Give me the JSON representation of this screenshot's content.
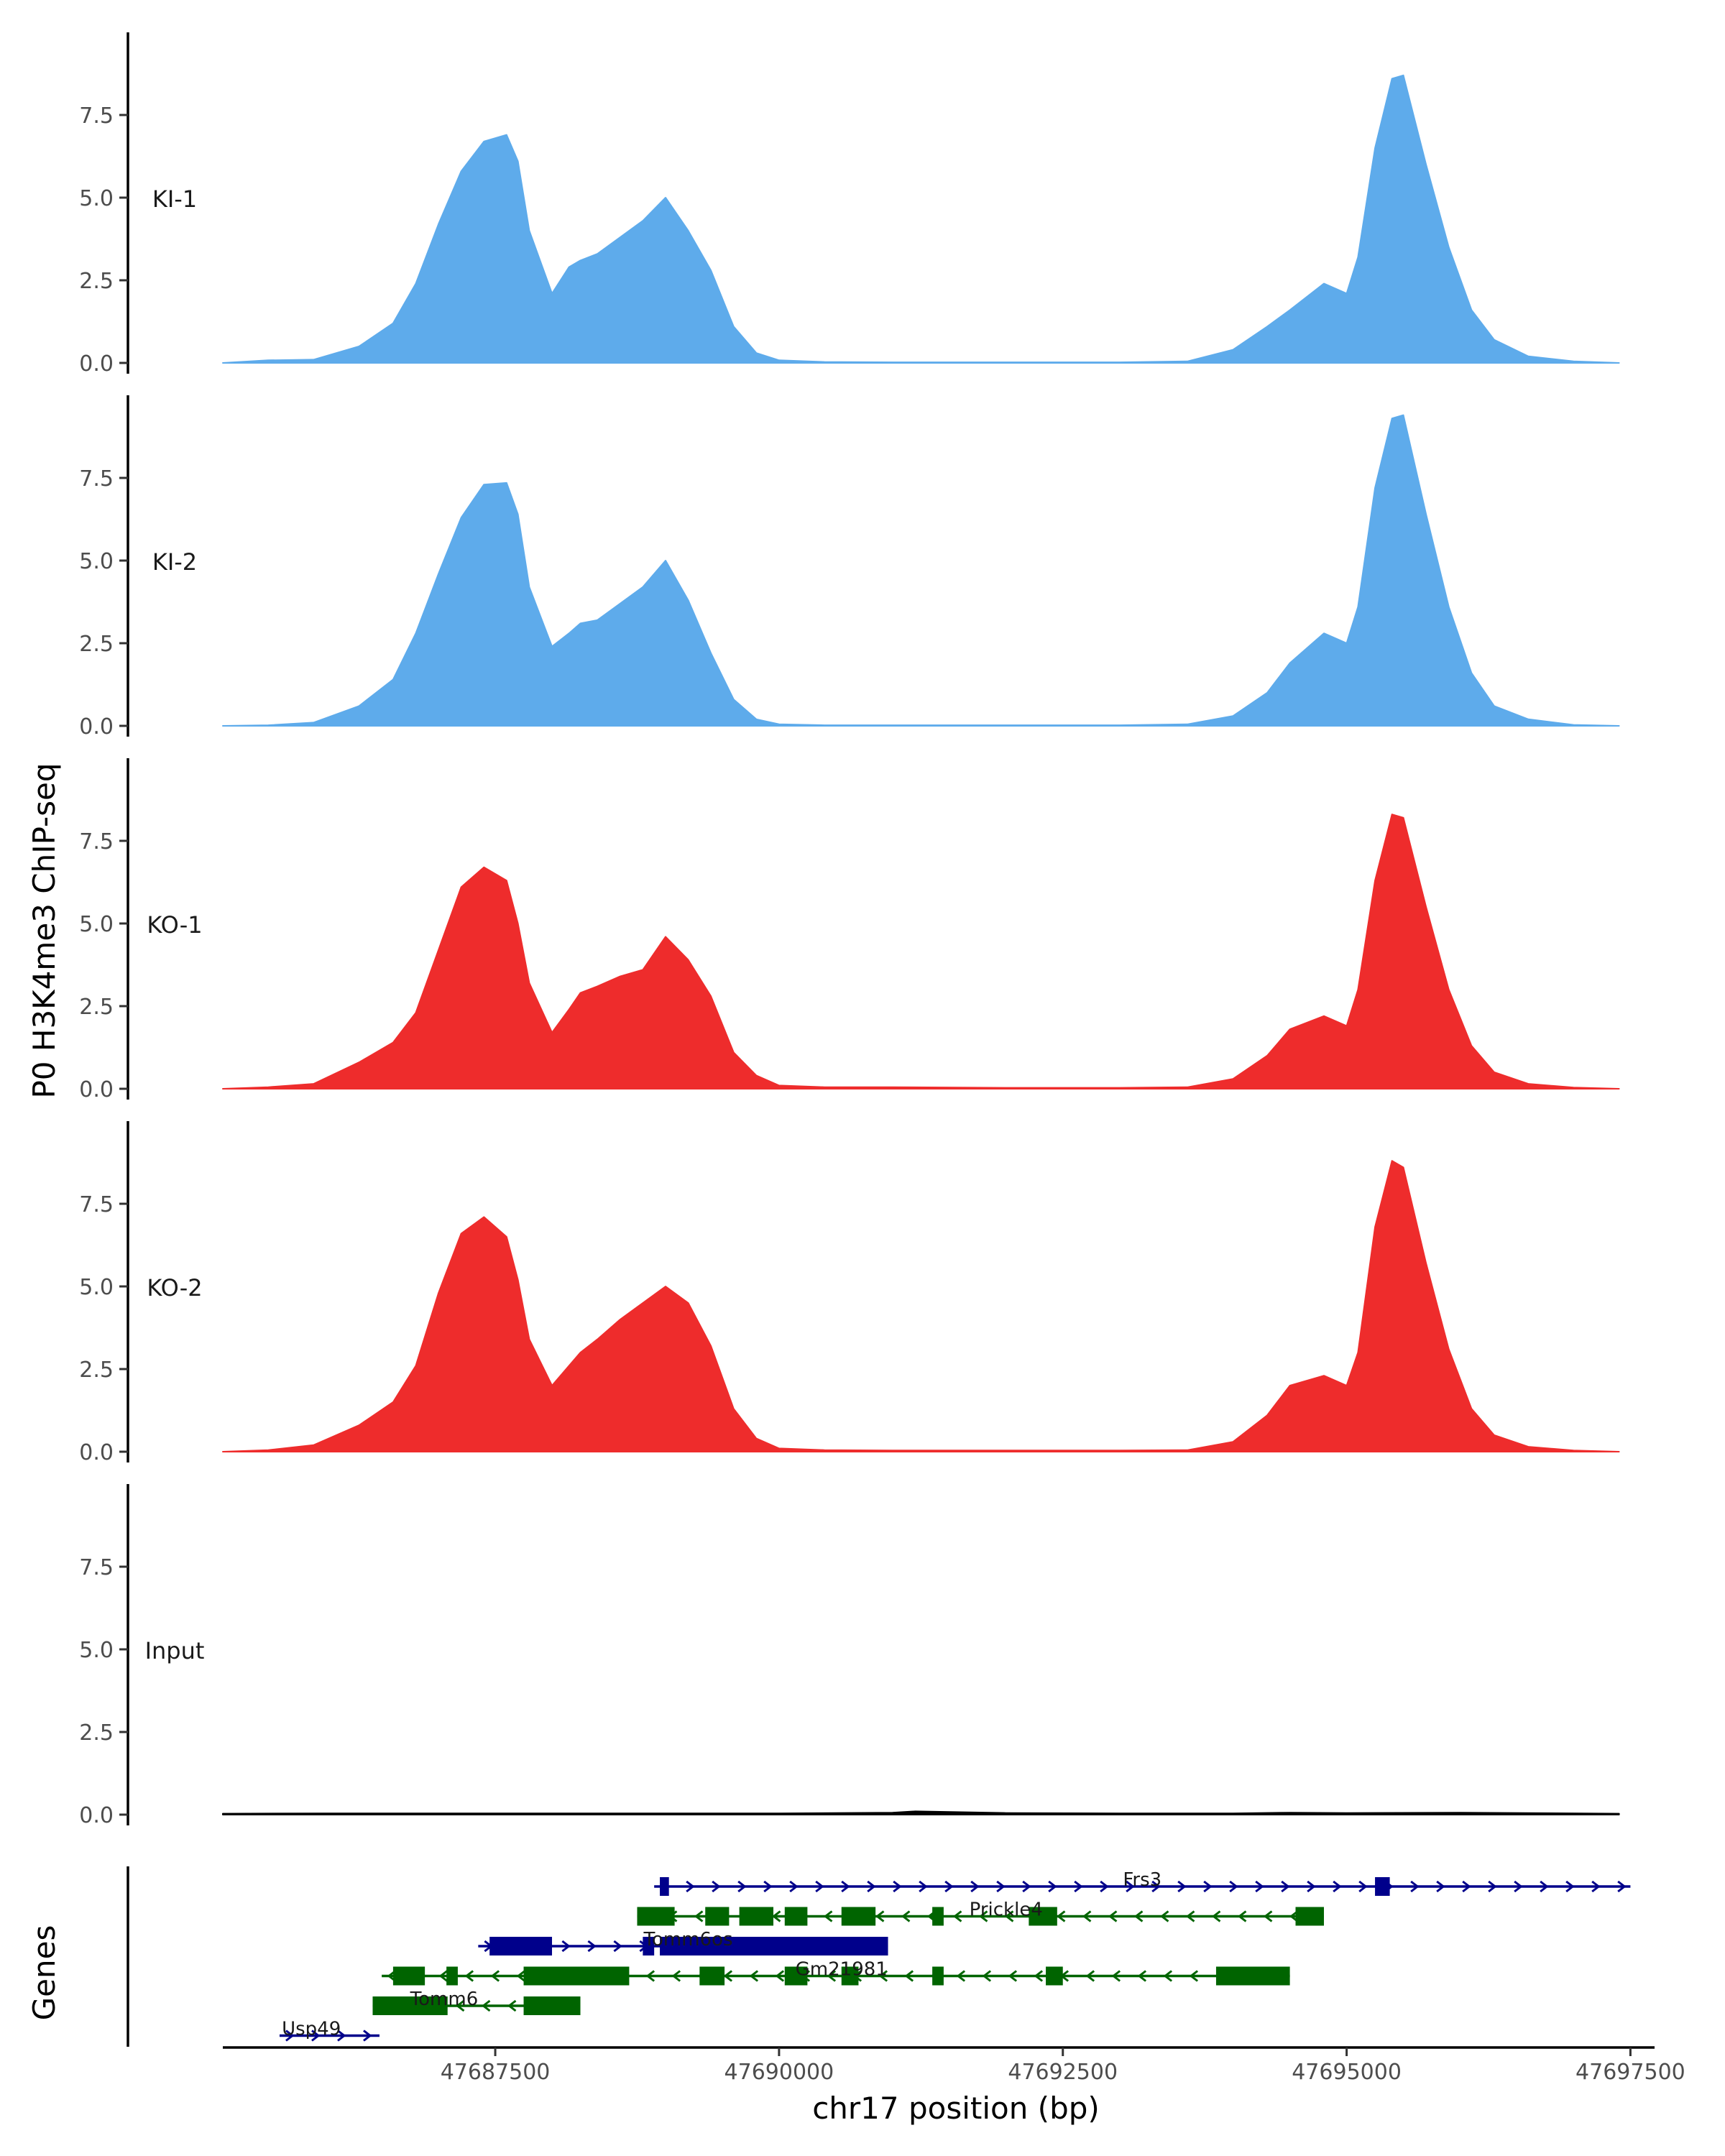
{
  "chart_data": {
    "type": "area",
    "ylabel": "P0 H3K4me3 ChIP-seq",
    "xlabel": "chr17 position (bp)",
    "genes_label": "Genes",
    "xlim": [
      47685100,
      47697700
    ],
    "x_ticks": [
      47687500,
      47690000,
      47692500,
      47695000,
      47697500
    ],
    "x_tick_labels": [
      "47687500",
      "47690000",
      "47692500",
      "47695000",
      "47697500"
    ],
    "ylim": [
      0,
      10
    ],
    "y_ticks": [
      0,
      2.5,
      5,
      7.5
    ],
    "y_tick_labels": [
      "0.0",
      "2.5",
      "5.0",
      "7.5"
    ],
    "colors": {
      "KI": "#5eabeb",
      "KO": "#ee2c2c",
      "Input": "#000000",
      "gene_plus": "#00008b",
      "gene_minus": "#006400",
      "axis": "#000000"
    },
    "tracks": [
      {
        "name": "KI-1",
        "color": "#5eabeb",
        "x": [
          47685100,
          47685500,
          47685900,
          47686300,
          47686600,
          47686800,
          47687000,
          47687200,
          47687400,
          47687600,
          47687700,
          47687800,
          47688000,
          47688150,
          47688250,
          47688400,
          47688600,
          47688800,
          47689000,
          47689200,
          47689400,
          47689600,
          47689800,
          47690000,
          47690400,
          47691000,
          47692000,
          47693000,
          47693600,
          47694000,
          47694300,
          47694500,
          47694800,
          47695000,
          47695100,
          47695250,
          47695400,
          47695500,
          47695700,
          47695900,
          47696100,
          47696300,
          47696600,
          47697000,
          47697400
        ],
        "y": [
          0,
          0.08,
          0.1,
          0.5,
          1.2,
          2.4,
          4.2,
          5.8,
          6.7,
          6.9,
          6.1,
          4.0,
          2.1,
          2.9,
          3.1,
          3.3,
          3.8,
          4.3,
          5.0,
          4.0,
          2.8,
          1.1,
          0.3,
          0.08,
          0.03,
          0.02,
          0.02,
          0.02,
          0.05,
          0.4,
          1.1,
          1.6,
          2.4,
          2.1,
          3.2,
          6.5,
          8.6,
          8.7,
          6.0,
          3.5,
          1.6,
          0.7,
          0.2,
          0.05,
          0
        ],
        "label_value": 5.0
      },
      {
        "name": "KI-2",
        "color": "#5eabeb",
        "x": [
          47685100,
          47685500,
          47685900,
          47686300,
          47686600,
          47686800,
          47687000,
          47687200,
          47687400,
          47687600,
          47687700,
          47687800,
          47688000,
          47688150,
          47688250,
          47688400,
          47688600,
          47688800,
          47689000,
          47689200,
          47689400,
          47689600,
          47689800,
          47690000,
          47690400,
          47691000,
          47692000,
          47693000,
          47693600,
          47694000,
          47694300,
          47694500,
          47694800,
          47695000,
          47695100,
          47695250,
          47695400,
          47695500,
          47695700,
          47695900,
          47696100,
          47696300,
          47696600,
          47697000,
          47697400
        ],
        "y": [
          0,
          0.02,
          0.1,
          0.6,
          1.4,
          2.8,
          4.6,
          6.3,
          7.3,
          7.35,
          6.4,
          4.2,
          2.4,
          2.8,
          3.1,
          3.2,
          3.7,
          4.2,
          5.0,
          3.8,
          2.2,
          0.8,
          0.2,
          0.05,
          0.02,
          0.02,
          0.02,
          0.02,
          0.05,
          0.3,
          1.0,
          1.9,
          2.8,
          2.5,
          3.6,
          7.2,
          9.3,
          9.4,
          6.4,
          3.6,
          1.6,
          0.6,
          0.2,
          0.03,
          0
        ],
        "label_value": 5.0
      },
      {
        "name": "KO-1",
        "color": "#ee2c2c",
        "x": [
          47685100,
          47685500,
          47685900,
          47686300,
          47686600,
          47686800,
          47687000,
          47687200,
          47687400,
          47687600,
          47687700,
          47687800,
          47688000,
          47688150,
          47688250,
          47688400,
          47688600,
          47688800,
          47689000,
          47689200,
          47689400,
          47689600,
          47689800,
          47690000,
          47690400,
          47691000,
          47692000,
          47693000,
          47693600,
          47694000,
          47694300,
          47694500,
          47694800,
          47695000,
          47695100,
          47695250,
          47695400,
          47695500,
          47695700,
          47695900,
          47696100,
          47696300,
          47696600,
          47697000,
          47697400
        ],
        "y": [
          0,
          0.05,
          0.15,
          0.8,
          1.4,
          2.3,
          4.2,
          6.1,
          6.7,
          6.3,
          5.0,
          3.2,
          1.7,
          2.4,
          2.9,
          3.1,
          3.4,
          3.6,
          4.6,
          3.9,
          2.8,
          1.1,
          0.4,
          0.1,
          0.05,
          0.05,
          0.03,
          0.03,
          0.05,
          0.3,
          1.0,
          1.8,
          2.2,
          1.9,
          3.0,
          6.3,
          8.3,
          8.2,
          5.5,
          3.0,
          1.3,
          0.5,
          0.15,
          0.04,
          0
        ],
        "label_value": 5.0
      },
      {
        "name": "KO-2",
        "color": "#ee2c2c",
        "x": [
          47685100,
          47685500,
          47685900,
          47686300,
          47686600,
          47686800,
          47687000,
          47687200,
          47687400,
          47687600,
          47687700,
          47687800,
          47688000,
          47688150,
          47688250,
          47688400,
          47688600,
          47688800,
          47689000,
          47689200,
          47689400,
          47689600,
          47689800,
          47690000,
          47690400,
          47691000,
          47692000,
          47693000,
          47693600,
          47694000,
          47694300,
          47694500,
          47694800,
          47695000,
          47695100,
          47695250,
          47695400,
          47695500,
          47695700,
          47695900,
          47696100,
          47696300,
          47696600,
          47697000,
          47697400
        ],
        "y": [
          0,
          0.05,
          0.2,
          0.8,
          1.5,
          2.6,
          4.8,
          6.6,
          7.1,
          6.5,
          5.2,
          3.4,
          2.0,
          2.6,
          3.0,
          3.4,
          4.0,
          4.5,
          5.0,
          4.5,
          3.2,
          1.3,
          0.4,
          0.1,
          0.05,
          0.04,
          0.04,
          0.04,
          0.05,
          0.3,
          1.1,
          2.0,
          2.3,
          2.0,
          3.0,
          6.8,
          8.8,
          8.6,
          5.7,
          3.1,
          1.3,
          0.5,
          0.15,
          0.04,
          0
        ],
        "label_value": 5.0
      },
      {
        "name": "Input",
        "color": "#000000",
        "x": [
          47685100,
          47686000,
          47687000,
          47688000,
          47689000,
          47690000,
          47691000,
          47691200,
          47692000,
          47693000,
          47694000,
          47694500,
          47695000,
          47696000,
          47697400
        ],
        "y": [
          0.03,
          0.04,
          0.04,
          0.04,
          0.04,
          0.04,
          0.06,
          0.1,
          0.05,
          0.04,
          0.04,
          0.06,
          0.05,
          0.06,
          0.03
        ],
        "label_value": 5.0
      }
    ],
    "genes": [
      {
        "name": "Frs3",
        "strand": "+",
        "color": "#00008b",
        "row": 1,
        "start": 47688900,
        "end": 47697500,
        "label_x": 47693200,
        "exons": [
          [
            47688950,
            47689030
          ],
          [
            47695250,
            47695380
          ]
        ]
      },
      {
        "name": "Prickle4",
        "strand": "-",
        "color": "#006400",
        "row": 2,
        "start": 47688750,
        "end": 47694800,
        "label_x": 47692000,
        "exons": [
          [
            47688750,
            47689080
          ],
          [
            47689350,
            47689560
          ],
          [
            47689650,
            47689950
          ],
          [
            47690050,
            47690250
          ],
          [
            47690550,
            47690850
          ],
          [
            47691350,
            47691450
          ],
          [
            47692200,
            47692450
          ],
          [
            47694550,
            47694800
          ]
        ]
      },
      {
        "name": "Tomm6os",
        "strand": "+",
        "color": "#00008b",
        "row": 3,
        "start": 47687350,
        "end": 47690960,
        "label_x": 47689200,
        "exons": [
          [
            47687450,
            47688000
          ],
          [
            47688800,
            47688900
          ],
          [
            47688950,
            47690960
          ]
        ]
      },
      {
        "name": "Gm21981",
        "strand": "-",
        "color": "#006400",
        "row": 4,
        "start": 47686500,
        "end": 47694500,
        "label_x": 47690550,
        "exons": [
          [
            47686600,
            47686880
          ],
          [
            47687070,
            47687170
          ],
          [
            47687750,
            47688680
          ],
          [
            47689300,
            47689520
          ],
          [
            47690050,
            47690250
          ],
          [
            47690550,
            47690700
          ],
          [
            47691350,
            47691450
          ],
          [
            47692350,
            47692500
          ],
          [
            47693850,
            47694500
          ]
        ]
      },
      {
        "name": "Tomm6",
        "strand": "-",
        "color": "#006400",
        "row": 5,
        "start": 47686420,
        "end": 47688250,
        "label_x": 47687050,
        "exons": [
          [
            47686420,
            47687080
          ],
          [
            47687750,
            47688250
          ]
        ]
      },
      {
        "name": "Usp49",
        "strand": "+",
        "color": "#00008b",
        "row": 6,
        "start": 47685600,
        "end": 47686480,
        "label_x": 47685880,
        "exons": []
      }
    ]
  }
}
